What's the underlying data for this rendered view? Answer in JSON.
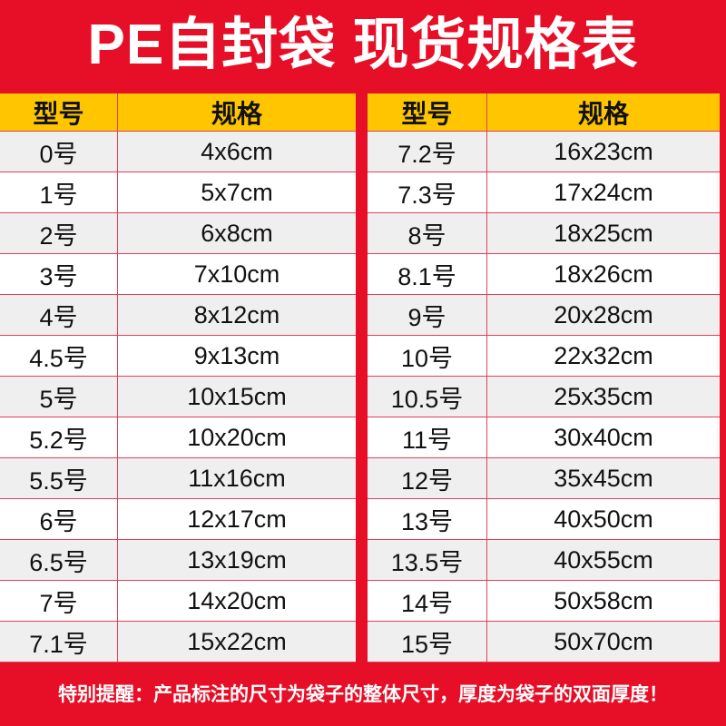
{
  "title": "PE自封袋 现货规格表",
  "tables": [
    {
      "columns": [
        "型号",
        "规格"
      ],
      "rows": [
        [
          "0号",
          "4x6cm"
        ],
        [
          "1号",
          "5x7cm"
        ],
        [
          "2号",
          "6x8cm"
        ],
        [
          "3号",
          "7x10cm"
        ],
        [
          "4号",
          "8x12cm"
        ],
        [
          "4.5号",
          "9x13cm"
        ],
        [
          "5号",
          "10x15cm"
        ],
        [
          "5.2号",
          "10x20cm"
        ],
        [
          "5.5号",
          "11x16cm"
        ],
        [
          "6号",
          "12x17cm"
        ],
        [
          "6.5号",
          "13x19cm"
        ],
        [
          "7号",
          "14x20cm"
        ],
        [
          "7.1号",
          "15x22cm"
        ]
      ]
    },
    {
      "columns": [
        "型号",
        "规格"
      ],
      "rows": [
        [
          "7.2号",
          "16x23cm"
        ],
        [
          "7.3号",
          "17x24cm"
        ],
        [
          "8号",
          "18x25cm"
        ],
        [
          "8.1号",
          "18x26cm"
        ],
        [
          "9号",
          "20x28cm"
        ],
        [
          "10号",
          "22x32cm"
        ],
        [
          "10.5号",
          "25x35cm"
        ],
        [
          "11号",
          "30x40cm"
        ],
        [
          "12号",
          "35x45cm"
        ],
        [
          "13号",
          "40x50cm"
        ],
        [
          "13.5号",
          "40x55cm"
        ],
        [
          "14号",
          "50x58cm"
        ],
        [
          "15号",
          "50x70cm"
        ]
      ]
    }
  ],
  "footer": "特别提醒：产品标注的尺寸为袋子的整体尺寸，厚度为袋子的双面厚度！"
}
